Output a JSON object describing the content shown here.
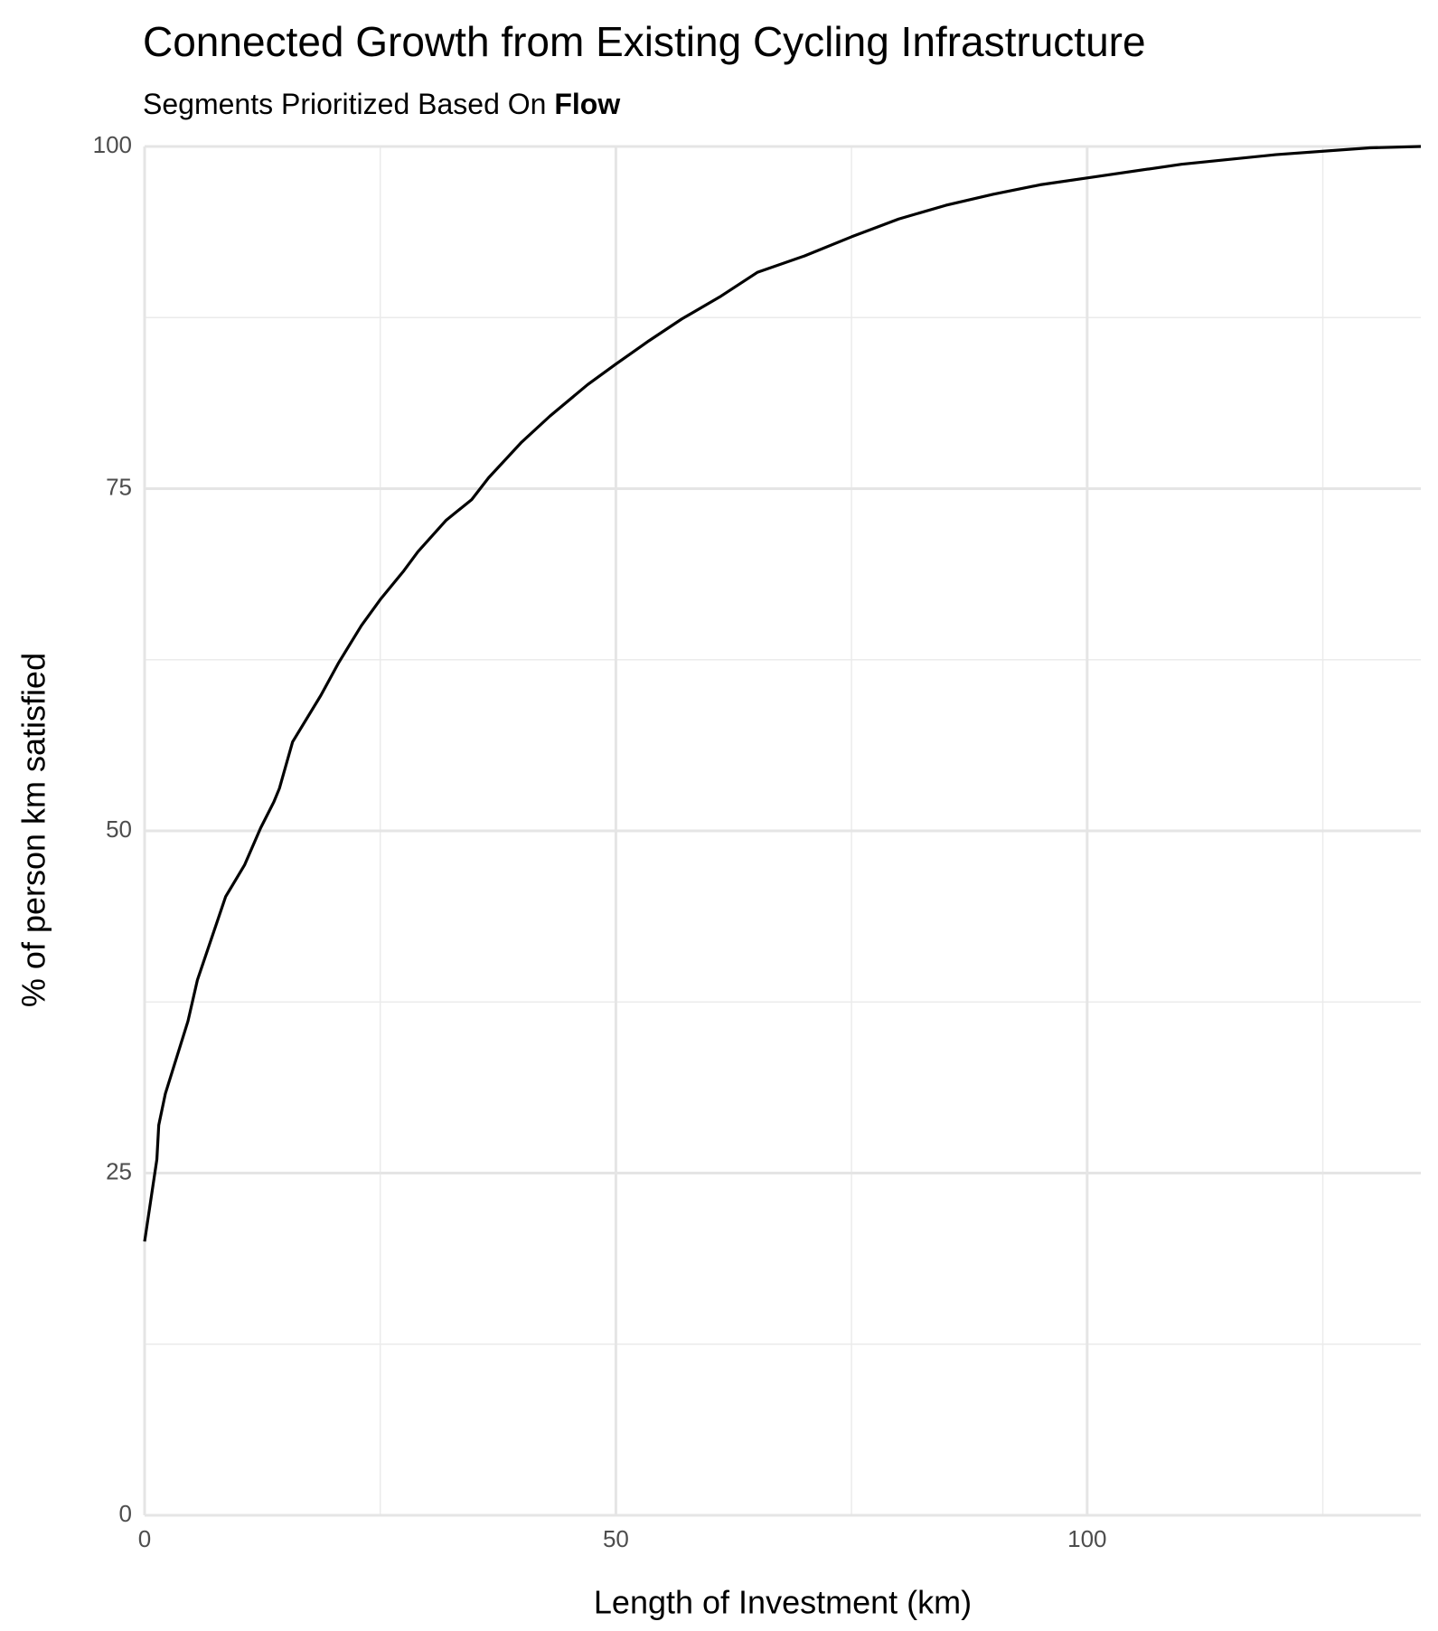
{
  "chart_data": {
    "type": "line",
    "title": "Connected Growth from Existing Cycling Infrastructure",
    "subtitle": "Segments Prioritized Based On",
    "subtitle_emphasis": "Flow",
    "x_label": "Length of Investment (km)",
    "y_label": "% of person km satisfied",
    "x": [
      0,
      1.3,
      1.5,
      2.2,
      4.6,
      5.6,
      8.6,
      10.6,
      12.3,
      13.7,
      14.3,
      15.7,
      18.7,
      20.6,
      23,
      25,
      27.5,
      29,
      32,
      34.7,
      36.5,
      40,
      43,
      47,
      50,
      53.5,
      57,
      61,
      65,
      70,
      75,
      80,
      85,
      90,
      95,
      100,
      110,
      120,
      130,
      135.4
    ],
    "series": [
      {
        "color": "#000000",
        "values": [
          20,
          26,
          28.5,
          30.8,
          36.1,
          39.1,
          45.2,
          47.5,
          50.2,
          52.1,
          53.1,
          56.5,
          59.9,
          62.3,
          65,
          66.9,
          69,
          70.4,
          72.7,
          74.2,
          75.8,
          78.4,
          80.3,
          82.6,
          84.1,
          85.8,
          87.4,
          89,
          90.8,
          92,
          93.4,
          94.7,
          95.7,
          96.5,
          97.2,
          97.7,
          98.7,
          99.4,
          99.9,
          100
        ]
      }
    ],
    "xlim": [
      0,
      135.4
    ],
    "ylim": [
      0,
      100
    ],
    "xticks": [
      0,
      50,
      100
    ],
    "yticks": [
      0,
      25,
      50,
      75,
      100
    ],
    "minor_xticks": [
      25,
      75,
      125
    ],
    "minor_yticks": [
      12.5,
      37.5,
      62.5,
      87.5
    ],
    "grid": true
  }
}
